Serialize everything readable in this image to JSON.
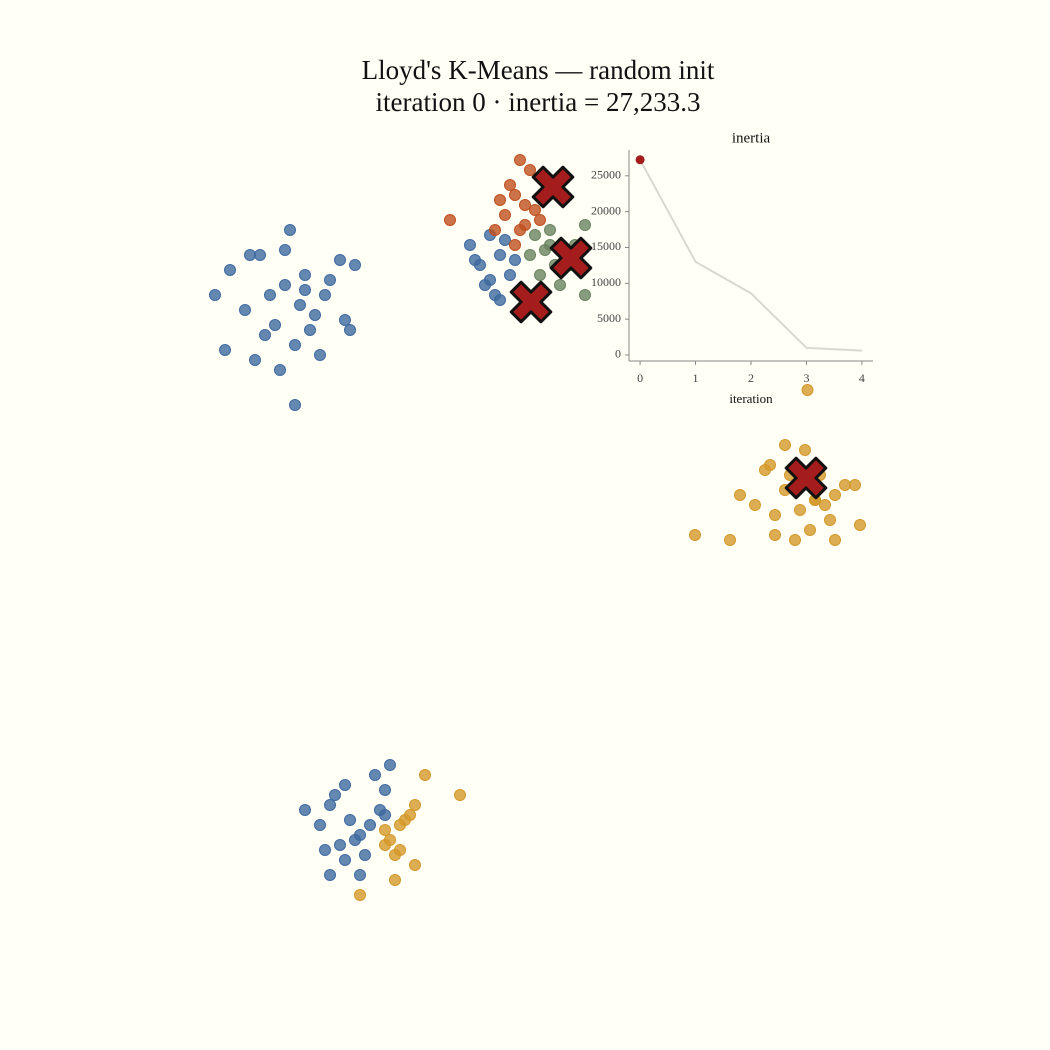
{
  "chart_data": [
    {
      "type": "scatter",
      "title": "Lloyd's K-Means — random init",
      "subtitle": "iteration 0  ·  inertia = 27,233.3",
      "xlim": [
        -10.5,
        10.5
      ],
      "ylim": [
        -10.5,
        10.5
      ],
      "series": [
        {
          "color": "#3f6aa0",
          "x": [
            -5.9,
            -5.6,
            -5.3,
            -5.0,
            -4.8,
            -4.6,
            -4.4,
            -4.2,
            -4.0,
            -3.7,
            -3.5,
            -6.2,
            -5.4,
            -4.9,
            -4.5,
            -4.1,
            -3.9,
            -5.1,
            -4.7,
            -4.3,
            -5.5,
            -4.6,
            -3.6,
            -6.0,
            -4.8,
            -5.2,
            -4.4,
            -3.4,
            -1.1,
            -0.9,
            -0.7,
            -0.5,
            -0.3,
            -0.8,
            -0.6,
            -1.0,
            -0.4,
            -0.2,
            -0.7,
            -0.5,
            -4.4,
            -4.1,
            -3.9,
            -3.7,
            -3.5,
            -3.3,
            -3.1,
            -2.9,
            -2.8,
            -3.6,
            -3.8,
            -3.2,
            -3.0,
            -4.0,
            -3.4,
            -2.7,
            -3.3,
            -3.9,
            -3.6,
            -2.8
          ],
          "y": [
            5.1,
            4.3,
            5.4,
            4.0,
            4.8,
            3.6,
            5.0,
            4.2,
            4.6,
            5.3,
            3.9,
            4.6,
            3.3,
            3.1,
            4.4,
            3.4,
            4.9,
            4.6,
            5.9,
            3.9,
            5.4,
            2.4,
            4.1,
            3.5,
            5.5,
            3.8,
            4.7,
            5.2,
            5.6,
            5.2,
            5.8,
            5.4,
            5.0,
            4.8,
            4.6,
            5.3,
            5.7,
            5.3,
            4.9,
            4.5,
            -5.7,
            -6.0,
            -5.6,
            -6.4,
            -5.9,
            -6.2,
            -6.0,
            -5.7,
            -5.3,
            -6.7,
            -5.4,
            -6.6,
            -5.0,
            -6.5,
            -6.3,
            -4.8,
            -7.0,
            -7.0,
            -5.2,
            -5.8
          ]
        },
        {
          "color": "#c0501f",
          "x": [
            -0.1,
            -0.4,
            -0.2,
            0.0,
            0.2,
            -0.5,
            0.1,
            -0.3,
            0.3,
            -1.5,
            -0.6,
            0.0,
            -0.2,
            0.4,
            -0.1
          ],
          "y": [
            7.3,
            6.2,
            6.6,
            6.0,
            6.3,
            6.5,
            7.1,
            6.8,
            6.1,
            6.1,
            5.9,
            6.4,
            5.6,
            6.6,
            5.9
          ]
        },
        {
          "color": "#6a8360",
          "x": [
            0.2,
            0.4,
            0.6,
            0.8,
            0.3,
            0.5,
            1.0,
            1.2,
            0.7,
            0.1,
            0.9,
            0.5,
            1.2
          ],
          "y": [
            5.8,
            5.5,
            5.2,
            5.4,
            5.0,
            5.9,
            5.6,
            6.0,
            4.8,
            5.4,
            5.2,
            5.6,
            4.6
          ]
        },
        {
          "color": "#d4982a",
          "x": [
            4.3,
            4.6,
            5.0,
            5.2,
            5.5,
            5.8,
            6.1,
            6.4,
            6.7,
            4.8,
            5.3,
            5.6,
            5.9,
            6.2,
            6.6,
            5.0,
            5.4,
            5.7,
            4.9,
            6.0,
            3.4,
            4.1,
            6.2,
            5.8,
            5.2,
            5.6,
            5.65,
            -2.0,
            -1.3,
            -2.2,
            -2.4,
            -2.5,
            -2.7,
            -2.6,
            -2.2,
            -2.8,
            -3.3,
            -2.6,
            -2.5,
            -2.3,
            -2.8
          ],
          "y": [
            0.6,
            0.4,
            0.2,
            0.7,
            0.3,
            0.5,
            0.1,
            0.8,
            0.0,
            1.1,
            1.0,
            0.9,
            1.0,
            0.6,
            0.8,
            -0.2,
            -0.3,
            -0.1,
            1.2,
            0.4,
            -0.2,
            -0.3,
            -0.3,
            0.5,
            1.6,
            1.5,
            2.7,
            -5.0,
            -5.4,
            -5.6,
            -5.9,
            -6.0,
            -6.3,
            -6.6,
            -6.8,
            -6.1,
            -7.4,
            -7.1,
            -6.5,
            -5.8,
            -6.4
          ]
        }
      ],
      "centroids": {
        "color": "#a51c1c",
        "x": [
          0.56,
          0.92,
          0.12,
          5.62
        ],
        "y": [
          6.76,
          5.34,
          4.46,
          0.94
        ]
      }
    },
    {
      "type": "line",
      "title": "inertia",
      "xlabel": "iteration",
      "x": [
        0,
        1,
        2,
        3,
        4
      ],
      "values": [
        27233.3,
        13000,
        8600,
        1000,
        600
      ],
      "color": "#d8d8d0",
      "marker_color": "#a51c1c",
      "current_index": 0,
      "xlim": [
        -0.2,
        4.2
      ],
      "ylim": [
        -840,
        28600
      ],
      "xticks": [
        0,
        1,
        2,
        3,
        4
      ],
      "yticks": [
        0,
        5000,
        10000,
        15000,
        20000,
        25000
      ]
    }
  ]
}
